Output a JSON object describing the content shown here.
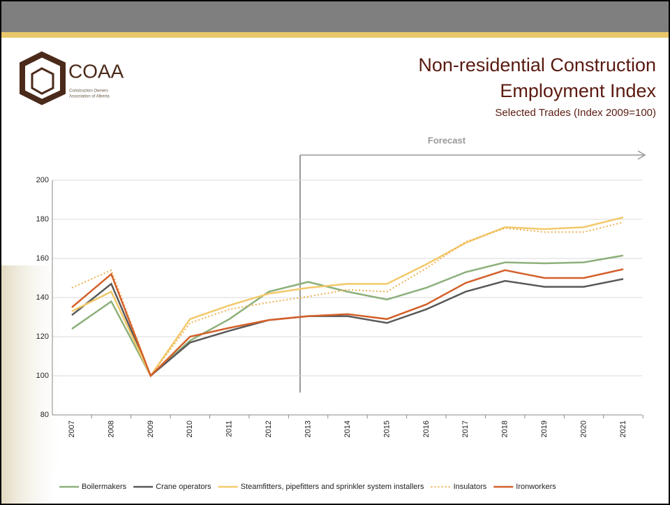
{
  "logo": {
    "name": "COAA",
    "line1": "Construction Owners",
    "line2": "Association of Alberta"
  },
  "chart_data": {
    "type": "line",
    "title": "Non-residential Construction",
    "title2": "Employment Index",
    "subtitle": "Selected Trades (Index 2009=100)",
    "annotation": "Forecast",
    "categories": [
      "2007",
      "2008",
      "2009",
      "2010",
      "2011",
      "2012",
      "2013",
      "2014",
      "2015",
      "2016",
      "2017",
      "2018",
      "2019",
      "2020",
      "2021"
    ],
    "ylim": [
      80,
      200
    ],
    "yticks": [
      80,
      100,
      120,
      140,
      160,
      180,
      200
    ],
    "grid": true,
    "legend": "bottom",
    "series": [
      {
        "name": "Boilermakers",
        "color": "#8db07a",
        "dash": false,
        "values": [
          124,
          138,
          100,
          118,
          129,
          143,
          148,
          143,
          139,
          145,
          153,
          158,
          157.5,
          158,
          161.5
        ]
      },
      {
        "name": "Crane operators",
        "color": "#595959",
        "dash": false,
        "values": [
          131,
          147,
          100,
          117,
          123,
          128.5,
          130.5,
          130.5,
          127,
          134,
          143,
          148.5,
          145.5,
          145.5,
          149.5
        ]
      },
      {
        "name": "Steamfitters, pipefitters and sprinkler system installers",
        "color": "#f2c96b",
        "dash": false,
        "values": [
          133,
          143,
          100,
          129,
          136,
          142,
          145,
          147,
          147,
          157,
          168,
          176,
          175,
          176,
          181
        ]
      },
      {
        "name": "Insulators",
        "color": "#eeb04e",
        "dash": true,
        "values": [
          145,
          154,
          100,
          127,
          134,
          137.5,
          140.5,
          144,
          143,
          155,
          168.5,
          175.5,
          173.5,
          173.5,
          178.5
        ]
      },
      {
        "name": "Ironworkers",
        "color": "#d4602a",
        "dash": false,
        "values": [
          135,
          152,
          100,
          120,
          124.5,
          128.5,
          130.5,
          131.5,
          129,
          136.5,
          147.5,
          154,
          150,
          150,
          154.5
        ]
      }
    ]
  }
}
